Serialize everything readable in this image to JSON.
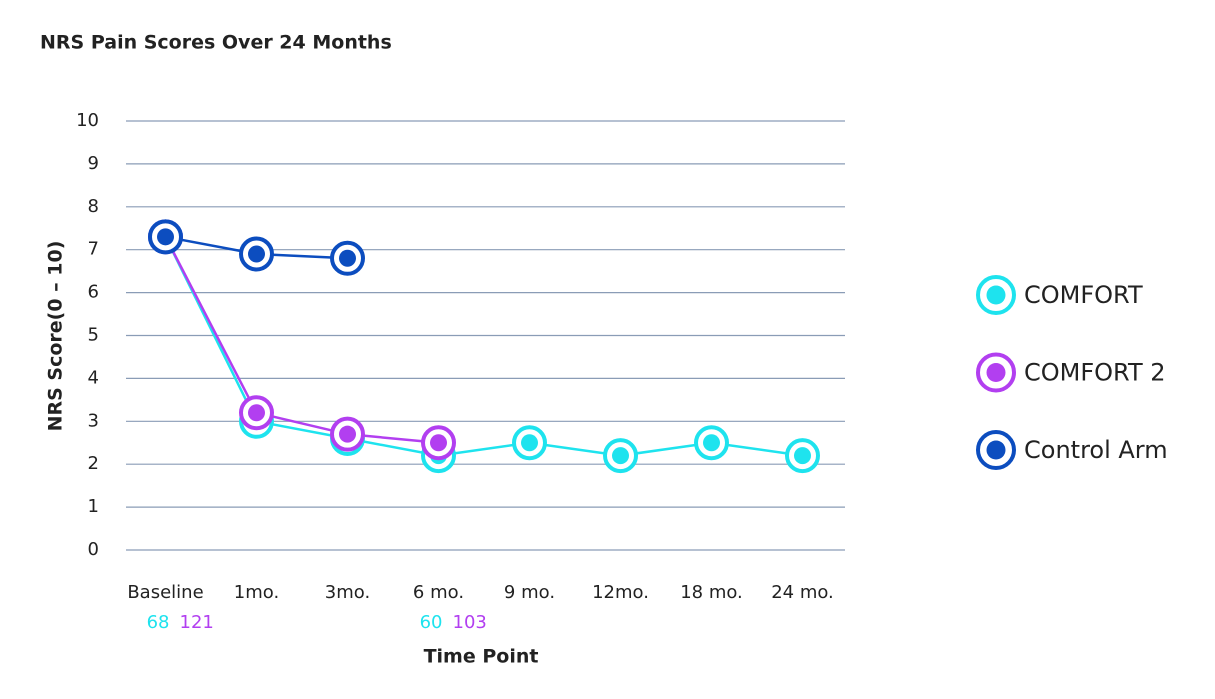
{
  "chart_data": {
    "type": "line",
    "title": "NRS Pain Scores Over 24 Months",
    "x_label": "Time Point",
    "y_label": "NRS Score(0 – 10)",
    "categories": [
      "Baseline",
      "1mo.",
      "3mo.",
      "6 mo.",
      "9 mo.",
      "12mo.",
      "18 mo.",
      "24 mo."
    ],
    "series": [
      {
        "name": "COMFORT",
        "color": "#1ee3ee",
        "values": [
          7.3,
          3.0,
          2.6,
          2.2,
          2.5,
          2.2,
          2.5,
          2.2
        ],
        "n": [
          68,
          null,
          null,
          60,
          null,
          null,
          null,
          null
        ]
      },
      {
        "name": "COMFORT 2",
        "color": "#b23ff0",
        "values": [
          7.3,
          3.2,
          2.7,
          2.5,
          null,
          null,
          null,
          null
        ],
        "n": [
          121,
          null,
          null,
          103,
          null,
          null,
          null,
          null
        ]
      },
      {
        "name": "Control Arm",
        "color": "#0c4dbf",
        "values": [
          7.3,
          6.9,
          6.8,
          null,
          null,
          null,
          null,
          null
        ]
      }
    ],
    "ylim": [
      0,
      10
    ],
    "yticks": [
      0,
      1,
      2,
      3,
      4,
      5,
      6,
      7,
      8,
      9,
      10
    ],
    "grid": true,
    "legend": "right"
  }
}
